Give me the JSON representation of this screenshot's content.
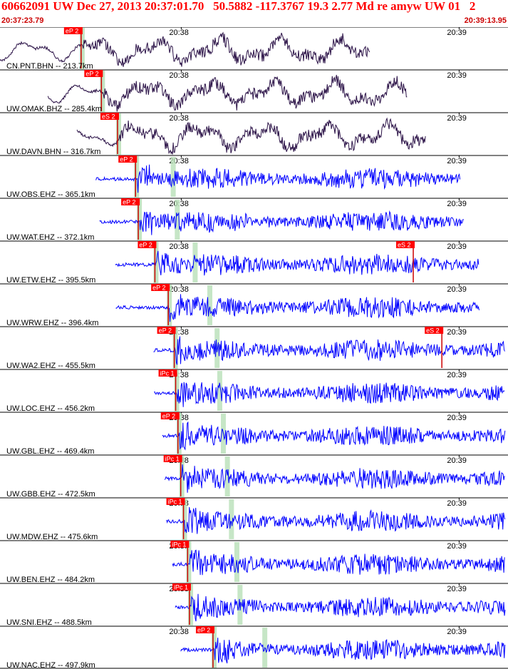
{
  "header": {
    "title": "60662091 UW Dec 27, 2013 20:37:01.70   50.5882 -117.3767 19.3 2.77 Md re amyw UW 01   2",
    "time_start": "20:37:23.79",
    "time_end": "20:39:13.95"
  },
  "colors": {
    "title": "#ff0000",
    "trace_broadband": "#2b1247",
    "trace_shortperiod": "#0000ff",
    "pick_box": "#ff0000",
    "pick_line": "#cc0000",
    "window_marker": "#b8e0b8"
  },
  "chart_data": {
    "type": "line",
    "title": "60662091 UW Dec 27, 2013 20:37:01.70   50.5882 -117.3767 19.3 2.77 Md re amyw UW 01   2",
    "x_unit": "time (UTC)",
    "x_range": [
      "20:37:23.79",
      "20:39:13.95"
    ],
    "minute_ticks": [
      "20:38",
      "20:39"
    ],
    "traces": [
      {
        "label": "CN.PNT.BHN -- 213.7km",
        "network": "CN",
        "station": "PNT",
        "channel": "BHN",
        "distance_km": 213.7,
        "color": "#2b1247",
        "picks": [
          "eP 2"
        ],
        "data_start_s": 0.0,
        "data_end_s": 80.2,
        "amplitude": 0.32,
        "onset_s": 17.9
      },
      {
        "label": "UW.OMAK.BHZ -- 285.4km",
        "network": "UW",
        "station": "OMAK",
        "channel": "BHZ",
        "distance_km": 285.4,
        "color": "#2b1247",
        "picks": [
          "eP 2"
        ],
        "data_start_s": 10.4,
        "data_end_s": 88.4,
        "amplitude": 0.35,
        "onset_s": 22.3
      },
      {
        "label": "UW.DAVN.BHN -- 316.7km",
        "network": "UW",
        "station": "DAVN",
        "channel": "BHN",
        "distance_km": 316.7,
        "color": "#2b1247",
        "picks": [
          "eS 2"
        ],
        "data_start_s": 16.7,
        "data_end_s": 92.4,
        "amplitude": 0.28,
        "onset_s": 25.8
      },
      {
        "label": "UW.OBS.EHZ -- 365.1km",
        "network": "UW",
        "station": "OBS",
        "channel": "EHZ",
        "distance_km": 365.1,
        "color": "#0000ff",
        "picks": [
          "eP 2"
        ],
        "data_start_s": 20.8,
        "data_end_s": 99.8,
        "amplitude": 0.3,
        "onset_s": 29.7
      },
      {
        "label": "UW.WAT.EHZ -- 372.1km",
        "network": "UW",
        "station": "WAT",
        "channel": "EHZ",
        "distance_km": 372.1,
        "color": "#0000ff",
        "picks": [
          "eP 2"
        ],
        "data_start_s": 21.6,
        "data_end_s": 100.7,
        "amplitude": 0.3,
        "onset_s": 30.3
      },
      {
        "label": "UW.ETW.EHZ -- 395.5km",
        "network": "UW",
        "station": "ETW",
        "channel": "EHZ",
        "distance_km": 395.5,
        "color": "#0000ff",
        "picks": [
          "eP 2",
          "eS 2"
        ],
        "data_start_s": 25.0,
        "data_end_s": 103.8,
        "amplitude": 0.3,
        "onset_s": 33.9
      },
      {
        "label": "UW.WRW.EHZ -- 396.4km",
        "network": "UW",
        "station": "WRW",
        "channel": "EHZ",
        "distance_km": 396.4,
        "color": "#0000ff",
        "picks": [
          "eP 2"
        ],
        "data_start_s": 25.1,
        "data_end_s": 104.0,
        "amplitude": 0.3,
        "onset_s": 36.8
      },
      {
        "label": "UW.WA2.EHZ -- 455.5km",
        "network": "UW",
        "station": "WA2",
        "channel": "EHZ",
        "distance_km": 455.5,
        "color": "#0000ff",
        "picks": [
          "eP 2",
          "eS 2"
        ],
        "data_start_s": 33.3,
        "data_end_s": 112.1,
        "amplitude": 0.3,
        "onset_s": 38.1
      },
      {
        "label": "UW.LOC.EHZ -- 456.2km",
        "network": "UW",
        "station": "LOC",
        "channel": "EHZ",
        "distance_km": 456.2,
        "color": "#0000ff",
        "picks": [
          "iPc 1"
        ],
        "data_start_s": 33.4,
        "data_end_s": 112.2,
        "amplitude": 0.3,
        "onset_s": 38.4
      },
      {
        "label": "UW.GBL.EHZ -- 469.4km",
        "network": "UW",
        "station": "GBL",
        "channel": "EHZ",
        "distance_km": 469.4,
        "color": "#0000ff",
        "picks": [
          "eP 2"
        ],
        "data_start_s": 35.2,
        "data_end_s": 113.9,
        "amplitude": 0.3,
        "onset_s": 38.9
      },
      {
        "label": "UW.GBB.EHZ -- 472.5km",
        "network": "UW",
        "station": "GBB",
        "channel": "EHZ",
        "distance_km": 472.5,
        "color": "#0000ff",
        "picks": [
          "iPc 1"
        ],
        "data_start_s": 35.7,
        "data_end_s": 114.7,
        "amplitude": 0.3,
        "onset_s": 39.5
      },
      {
        "label": "UW.MDW.EHZ -- 475.6km",
        "network": "UW",
        "station": "MDW",
        "channel": "EHZ",
        "distance_km": 475.6,
        "color": "#0000ff",
        "picks": [
          "iPc 1"
        ],
        "data_start_s": 36.1,
        "data_end_s": 115.3,
        "amplitude": 0.3,
        "onset_s": 40.1
      },
      {
        "label": "UW.BEN.EHZ -- 484.2km",
        "network": "UW",
        "station": "BEN",
        "channel": "EHZ",
        "distance_km": 484.2,
        "color": "#0000ff",
        "picks": [
          "iPc 1"
        ],
        "data_start_s": 37.4,
        "data_end_s": 116.4,
        "amplitude": 0.3,
        "onset_s": 41.0
      },
      {
        "label": "UW.SNI.EHZ -- 488.5km",
        "network": "UW",
        "station": "SNI",
        "channel": "EHZ",
        "distance_km": 488.5,
        "color": "#0000ff",
        "picks": [
          "iPc 1"
        ],
        "data_start_s": 38.0,
        "data_end_s": 116.5,
        "amplitude": 0.3,
        "onset_s": 41.4
      },
      {
        "label": "UW.NAC.EHZ -- 497.9km",
        "network": "UW",
        "station": "NAC",
        "channel": "EHZ",
        "distance_km": 497.9,
        "color": "#0000ff",
        "picks": [
          "eP 2"
        ],
        "data_start_s": 39.2,
        "data_end_s": 116.5,
        "amplitude": 0.3,
        "onset_s": 46.5
      }
    ]
  }
}
